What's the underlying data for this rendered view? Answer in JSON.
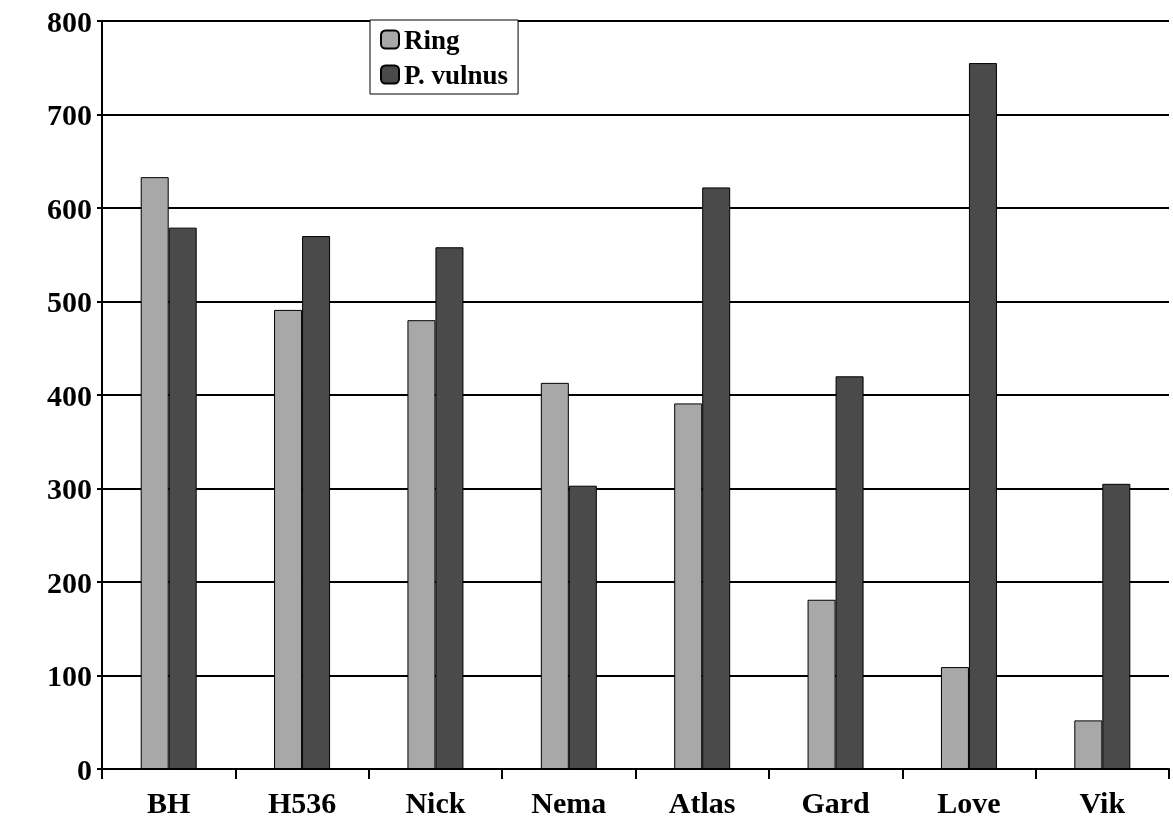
{
  "chart_data": {
    "type": "bar",
    "categories": [
      "BH",
      "H536",
      "Nick",
      "Nema",
      "Atlas",
      "Gard",
      "Love",
      "Vik"
    ],
    "series": [
      {
        "name": "Ring",
        "color": "#a8a8a8",
        "values": [
          633,
          491,
          480,
          413,
          391,
          181,
          109,
          52
        ]
      },
      {
        "name": "P. vulnus",
        "color": "#4a4a4a",
        "values": [
          579,
          570,
          558,
          303,
          622,
          420,
          755,
          305
        ]
      }
    ],
    "ylim": [
      0,
      800
    ],
    "yticks": [
      0,
      100,
      200,
      300,
      400,
      500,
      600,
      700,
      800
    ],
    "grid": "y",
    "legend": "top left"
  }
}
